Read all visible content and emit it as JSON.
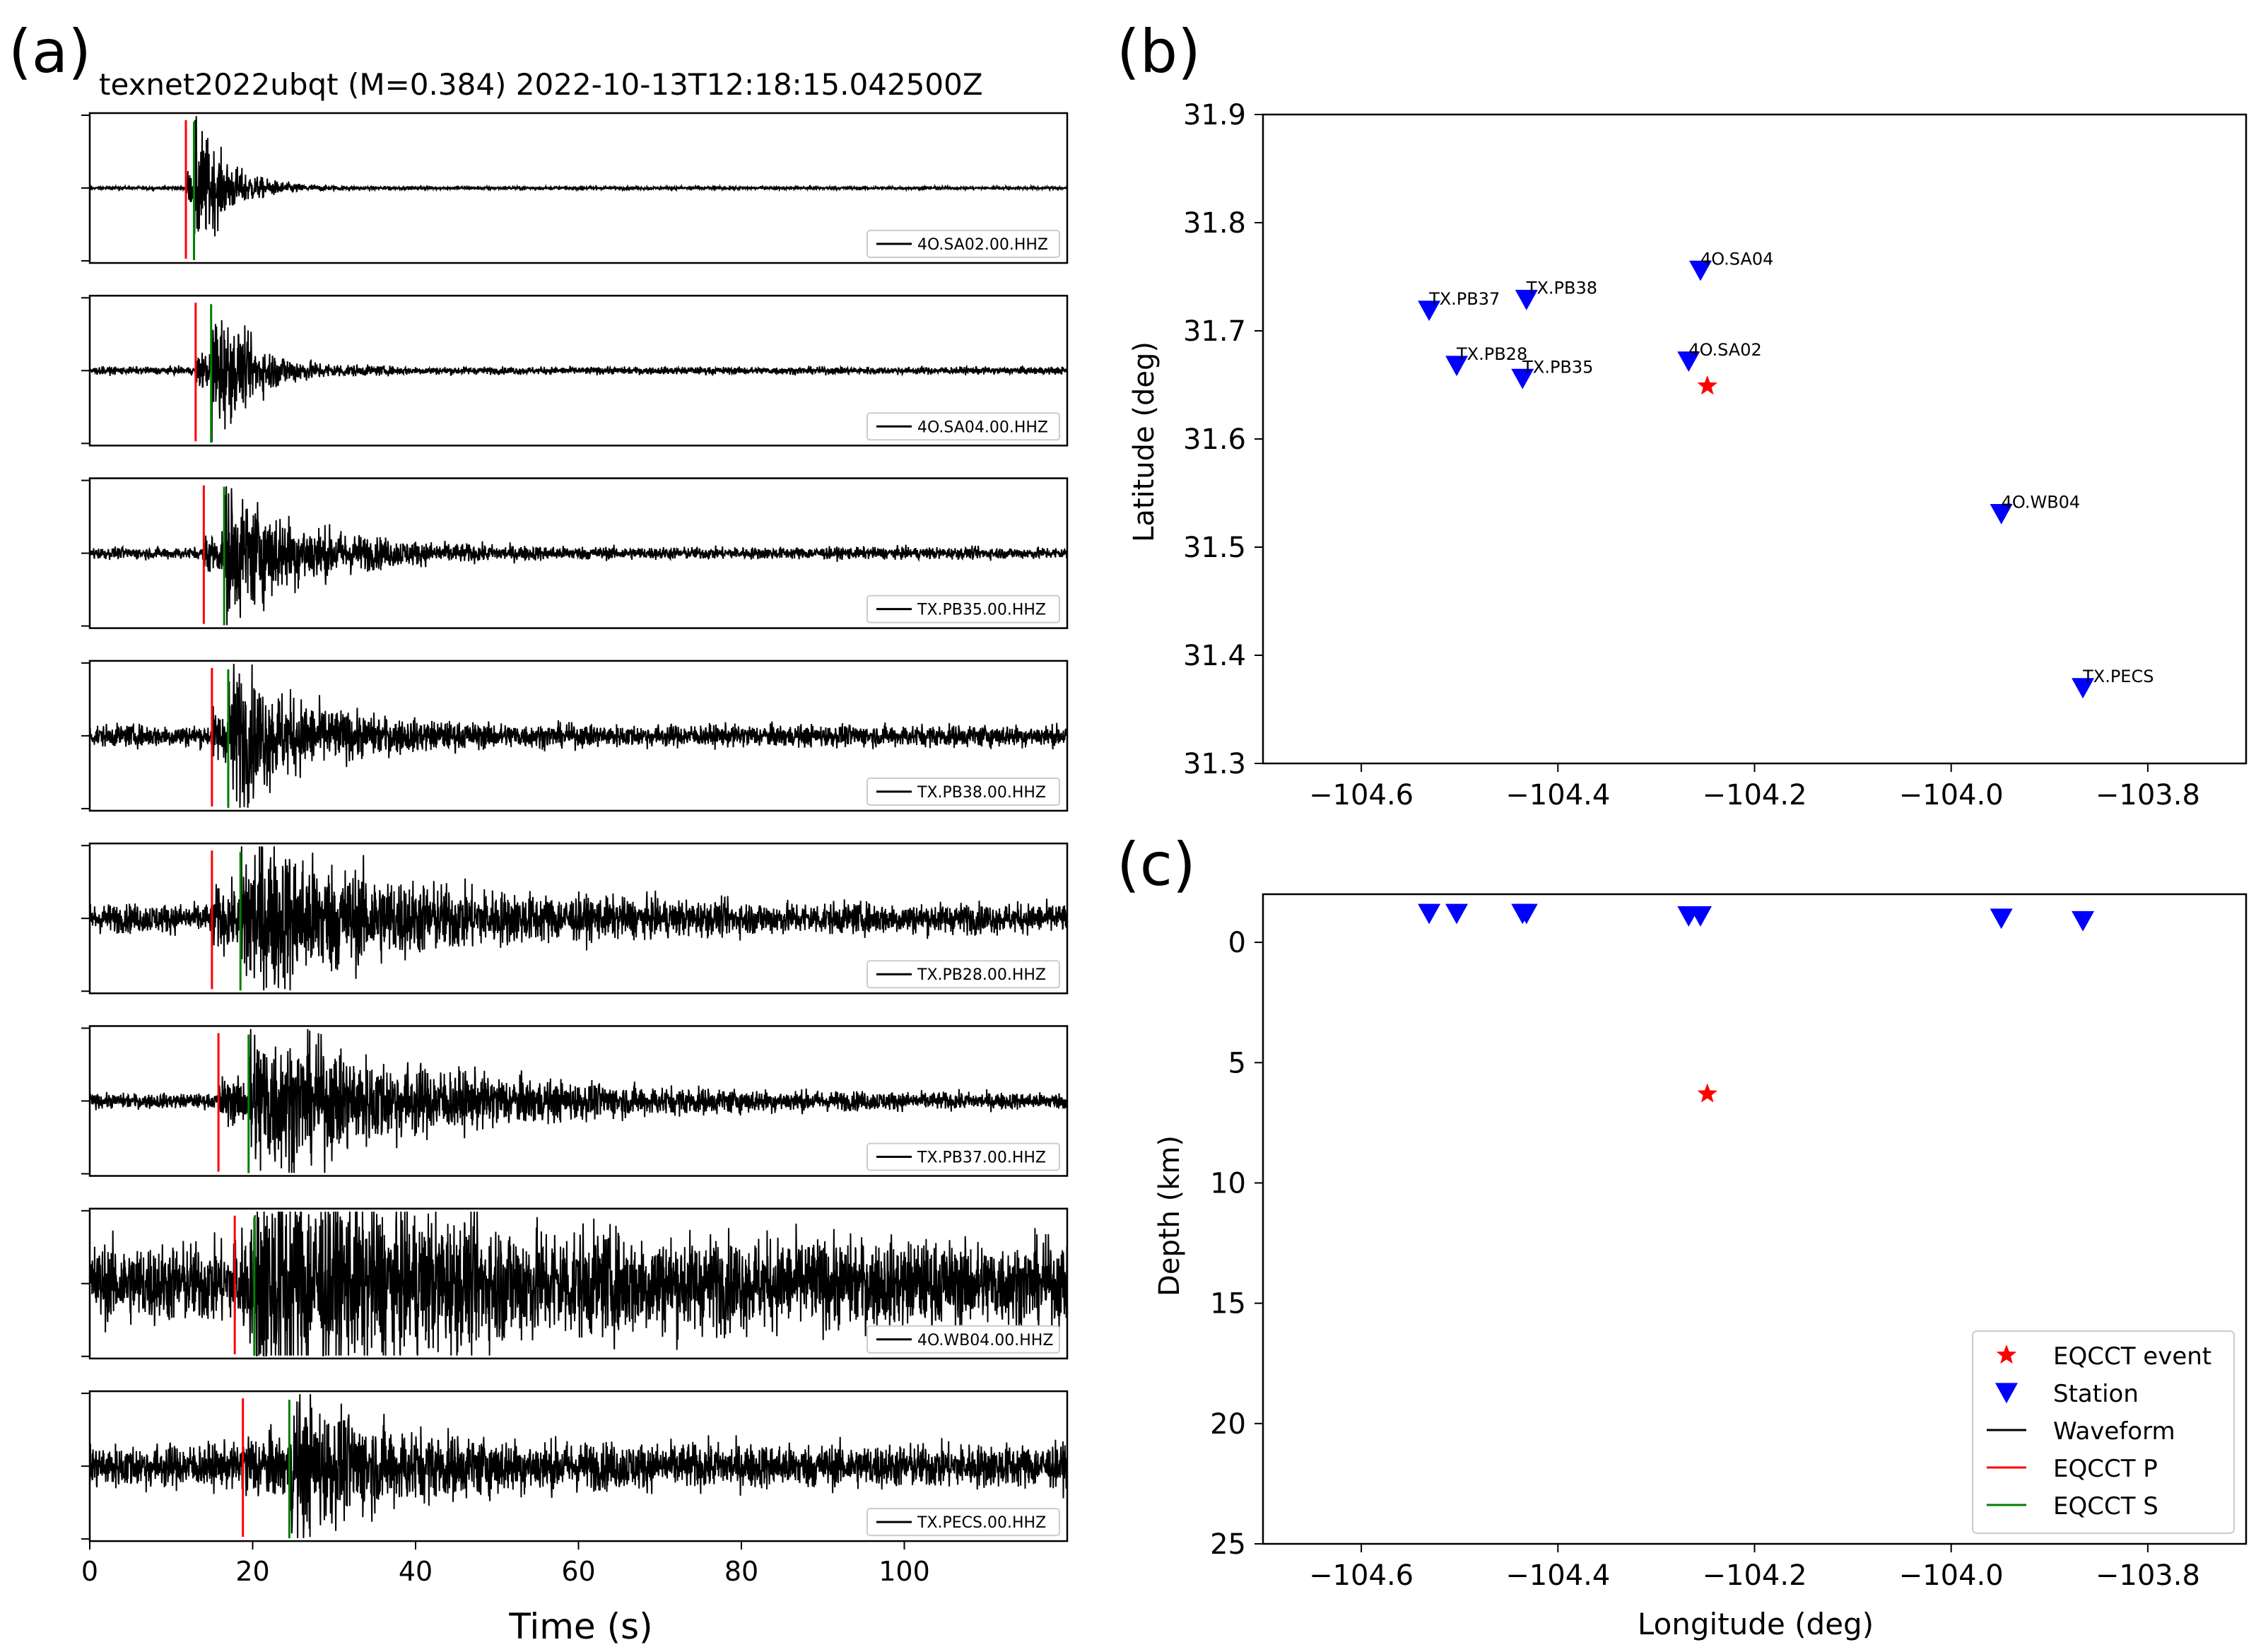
{
  "panel_labels": {
    "a": "(a)",
    "b": "(b)",
    "c": "(c)"
  },
  "colors": {
    "waveform": "#000000",
    "p_pick": "#ff0000",
    "s_pick": "#008000",
    "event": "#ff0000",
    "station": "#0000ff"
  },
  "chart_data": [
    {
      "type": "line",
      "id": "waveforms",
      "title": "texnet2022ubqt (M=0.384) 2022-10-13T12:18:15.042500Z",
      "xlabel": "Time (s)",
      "xlim": [
        0,
        120
      ],
      "xticks": [
        0,
        20,
        40,
        60,
        80,
        100
      ],
      "xtick_labels": [
        "0",
        "20",
        "40",
        "60",
        "80",
        "100"
      ],
      "traces": [
        {
          "station": "4O.SA02.00.HHZ",
          "p_time": 11.8,
          "s_time": 12.8,
          "noise": 0.02,
          "coda_amp": 0.95,
          "coda_decay": 4
        },
        {
          "station": "4O.SA04.00.HHZ",
          "p_time": 13.0,
          "s_time": 14.9,
          "noise": 0.05,
          "coda_amp": 0.95,
          "coda_decay": 5
        },
        {
          "station": "TX.PB35.00.HHZ",
          "p_time": 14.0,
          "s_time": 16.5,
          "noise": 0.08,
          "coda_amp": 0.9,
          "coda_decay": 10
        },
        {
          "station": "TX.PB38.00.HHZ",
          "p_time": 15.0,
          "s_time": 17.0,
          "noise": 0.15,
          "coda_amp": 0.9,
          "coda_decay": 9
        },
        {
          "station": "TX.PB28.00.HHZ",
          "p_time": 15.0,
          "s_time": 18.5,
          "noise": 0.2,
          "coda_amp": 1.0,
          "coda_decay": 18
        },
        {
          "station": "TX.PB37.00.HHZ",
          "p_time": 15.8,
          "s_time": 19.5,
          "noise": 0.1,
          "coda_amp": 0.95,
          "coda_decay": 22
        },
        {
          "station": "4O.WB04.00.HHZ",
          "p_time": 17.8,
          "s_time": 20.2,
          "noise": 0.55,
          "coda_amp": 0.95,
          "coda_decay": 25
        },
        {
          "station": "TX.PECS.00.HHZ",
          "p_time": 18.8,
          "s_time": 24.5,
          "noise": 0.3,
          "coda_amp": 0.75,
          "coda_decay": 12
        }
      ]
    },
    {
      "type": "scatter",
      "id": "map",
      "ylabel": "Latitude (deg)",
      "xlim": [
        -104.7,
        -103.7
      ],
      "ylim": [
        31.3,
        31.9
      ],
      "xticks": [
        -104.6,
        -104.4,
        -104.2,
        -104.0,
        -103.8
      ],
      "xtick_labels": [
        "−104.6",
        "−104.4",
        "−104.2",
        "−104.0",
        "−103.8"
      ],
      "yticks": [
        31.3,
        31.4,
        31.5,
        31.6,
        31.7,
        31.8,
        31.9
      ],
      "ytick_labels": [
        "31.3",
        "31.4",
        "31.5",
        "31.6",
        "31.7",
        "31.8",
        "31.9"
      ],
      "stations": [
        {
          "name": "TX.PB37",
          "lon": -104.531,
          "lat": 31.719
        },
        {
          "name": "TX.PB28",
          "lon": -104.503,
          "lat": 31.668
        },
        {
          "name": "TX.PB38",
          "lon": -104.432,
          "lat": 31.729
        },
        {
          "name": "TX.PB35",
          "lon": -104.436,
          "lat": 31.656
        },
        {
          "name": "4O.SA04",
          "lon": -104.255,
          "lat": 31.756
        },
        {
          "name": "4O.SA02",
          "lon": -104.267,
          "lat": 31.672
        },
        {
          "name": "4O.WB04",
          "lon": -103.949,
          "lat": 31.531
        },
        {
          "name": "TX.PECS",
          "lon": -103.866,
          "lat": 31.37
        }
      ],
      "event": {
        "lon": -104.248,
        "lat": 31.649
      }
    },
    {
      "type": "scatter",
      "id": "depth",
      "xlabel": "Longitude (deg)",
      "ylabel": "Depth (km)",
      "xlim": [
        -104.7,
        -103.7
      ],
      "ylim": [
        -2,
        25
      ],
      "y_inverted": true,
      "xticks": [
        -104.6,
        -104.4,
        -104.2,
        -104.0,
        -103.8
      ],
      "xtick_labels": [
        "−104.6",
        "−104.4",
        "−104.2",
        "−104.0",
        "−103.8"
      ],
      "yticks": [
        0,
        5,
        10,
        15,
        20,
        25
      ],
      "ytick_labels": [
        "0",
        "5",
        "10",
        "15",
        "20",
        "25"
      ],
      "stations": [
        {
          "lon": -104.531,
          "depth": -1.2
        },
        {
          "lon": -104.503,
          "depth": -1.2
        },
        {
          "lon": -104.436,
          "depth": -1.2
        },
        {
          "lon": -104.432,
          "depth": -1.2
        },
        {
          "lon": -104.267,
          "depth": -1.1
        },
        {
          "lon": -104.255,
          "depth": -1.1
        },
        {
          "lon": -103.949,
          "depth": -1.0
        },
        {
          "lon": -103.866,
          "depth": -0.9
        }
      ],
      "event": {
        "lon": -104.248,
        "depth": 6.3
      },
      "legend": {
        "placement": "bottom-right",
        "entries": [
          {
            "label": "EQCCT event",
            "kind": "star",
            "color": "#ff0000"
          },
          {
            "label": "Station",
            "kind": "triangle",
            "color": "#0000ff"
          },
          {
            "label": "Waveform",
            "kind": "line",
            "color": "#000000"
          },
          {
            "label": "EQCCT P",
            "kind": "line",
            "color": "#ff0000"
          },
          {
            "label": "EQCCT S",
            "kind": "line",
            "color": "#008000"
          }
        ]
      }
    }
  ]
}
